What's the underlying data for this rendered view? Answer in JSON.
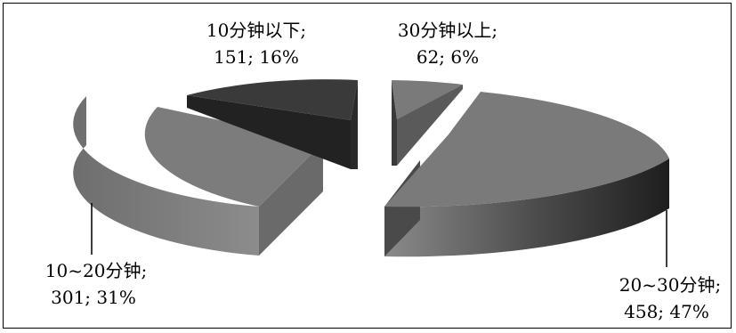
{
  "chart_data": {
    "type": "pie",
    "style": "3d-exploded",
    "slices": [
      {
        "category": "10分钟以下",
        "count": 151,
        "percent": "16%",
        "label_line1": "10分钟以下;",
        "label_line2": "151; 16%",
        "color": "#3a3a3a"
      },
      {
        "category": "30分钟以上",
        "count": 62,
        "percent": "6%",
        "label_line1": "30分钟以上;",
        "label_line2": "62; 6%",
        "color": "#7a7a7a"
      },
      {
        "category": "20~30分钟",
        "count": 458,
        "percent": "47%",
        "label_line1": "20~30分钟;",
        "label_line2": "458; 47%",
        "color": "#7a7a7a"
      },
      {
        "category": "10~20分钟",
        "count": 301,
        "percent": "31%",
        "label_line1": "10~20分钟;",
        "label_line2": "301; 31%",
        "color": "#7a7a7a"
      }
    ],
    "title": "",
    "legend": "none"
  }
}
